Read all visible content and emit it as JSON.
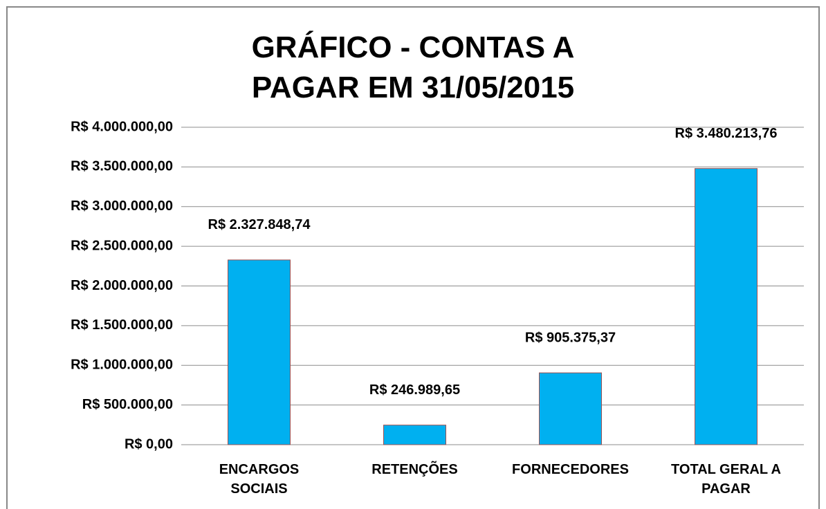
{
  "chart_data": {
    "type": "bar",
    "title": "GRÁFICO - CONTAS A PAGAR EM 31/05/2015",
    "categories": [
      "ENCARGOS SOCIAIS",
      "RETENÇÕES",
      "FORNECEDORES",
      "TOTAL GERAL A PAGAR"
    ],
    "values": [
      2327848.74,
      246989.65,
      905375.37,
      3480213.76
    ],
    "value_labels": [
      "R$ 2.327.848,74",
      "R$ 246.989,65",
      "R$ 905.375,37",
      "R$ 3.480.213,76"
    ],
    "color": "#00b0f0",
    "ylim": [
      0,
      4000000
    ],
    "yticks": [
      {
        "value": 0,
        "label": "R$ 0,00"
      },
      {
        "value": 500000,
        "label": "R$ 500.000,00"
      },
      {
        "value": 1000000,
        "label": "R$ 1.000.000,00"
      },
      {
        "value": 1500000,
        "label": "R$ 1.500.000,00"
      },
      {
        "value": 2000000,
        "label": "R$ 2.000.000,00"
      },
      {
        "value": 2500000,
        "label": "R$ 2.500.000,00"
      },
      {
        "value": 3000000,
        "label": "R$ 3.000.000,00"
      },
      {
        "value": 3500000,
        "label": "R$ 3.500.000,00"
      },
      {
        "value": 4000000,
        "label": "R$ 4.000.000,00"
      }
    ],
    "grid": true
  }
}
